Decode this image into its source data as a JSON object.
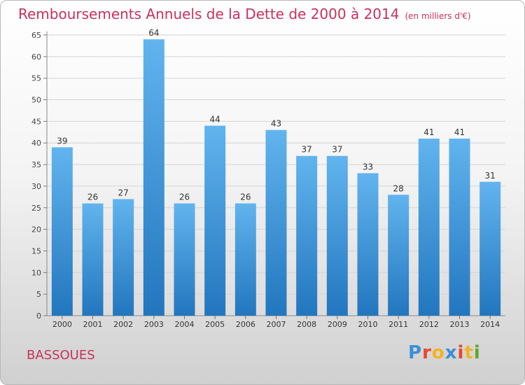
{
  "title": "Remboursements Annuels de la Dette de 2000 à 2014",
  "unit": "(en milliers d'€)",
  "place": "BASSOUES",
  "brand": {
    "letters": [
      "P",
      "r",
      "o",
      "x",
      "i",
      "t",
      "i"
    ],
    "colors": [
      "#3a8fd8",
      "#e8462a",
      "#f2b325",
      "#3a8fd8",
      "#e8462a",
      "#f2b325",
      "#5aaa2a"
    ]
  },
  "colors": {
    "bar_top": "#62b4ee",
    "bar_bottom": "#2276be",
    "title": "#c8325a"
  },
  "chart_data": {
    "type": "bar",
    "categories": [
      "2000",
      "2001",
      "2002",
      "2003",
      "2004",
      "2005",
      "2006",
      "2007",
      "2008",
      "2009",
      "2010",
      "2011",
      "2012",
      "2013",
      "2014"
    ],
    "values": [
      39,
      26,
      27,
      64,
      26,
      44,
      26,
      43,
      37,
      37,
      33,
      28,
      41,
      41,
      31
    ],
    "ylim": [
      0,
      65
    ],
    "yticks": [
      0,
      5,
      10,
      15,
      20,
      25,
      30,
      35,
      40,
      45,
      50,
      55,
      60,
      65
    ],
    "grid": true
  }
}
